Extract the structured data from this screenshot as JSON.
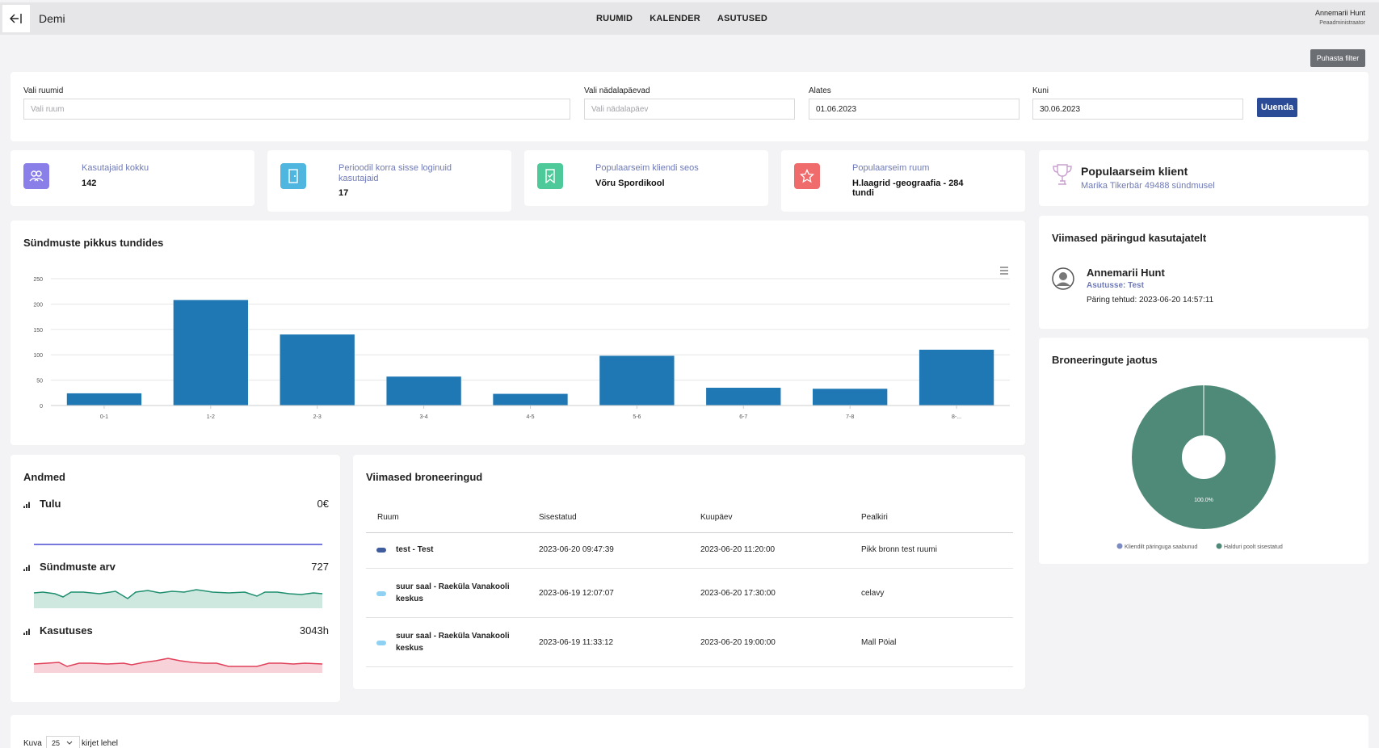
{
  "header": {
    "back_icon": "arrow-left-icon",
    "app_title": "Demi",
    "nav": [
      "RUUMID",
      "KALENDER",
      "ASUTUSED"
    ],
    "user_name": "Annemarii Hunt",
    "user_role": "Peaadministraator"
  },
  "clear_filter_label": "Puhasta filter",
  "filters": {
    "rooms_label": "Vali ruumid",
    "rooms_placeholder": "Vali ruum",
    "weekdays_label": "Vali nädalapäevad",
    "weekdays_placeholder": "Vali nädalapäev",
    "from_label": "Alates",
    "from_value": "01.06.2023",
    "to_label": "Kuni",
    "to_value": "30.06.2023",
    "renew_label": "Uuenda"
  },
  "stats": [
    {
      "label": "Kasutajaid kokku",
      "value": "142",
      "icon": "users-icon",
      "color": "#8a7ee8"
    },
    {
      "label": "Perioodil korra sisse loginuid kasutajaid",
      "value": "17",
      "icon": "door-icon",
      "color": "#4fb6e0"
    },
    {
      "label": "Populaarseim kliendi seos",
      "value": "Võru Spordikool",
      "icon": "bookmark-icon",
      "color": "#4ec99a"
    },
    {
      "label": "Populaarseim ruum",
      "value": "H.laagrid -geograafia - 284 tundi",
      "icon": "star-icon",
      "color": "#f06b6b"
    }
  ],
  "popular_client": {
    "title": "Populaarseim klient",
    "value": "Marika Tikerbär 49488 sündmusel",
    "icon": "trophy-icon"
  },
  "events_chart": {
    "title": "Sündmuste pikkus tundides",
    "menu_icon": "hamburger-menu-icon"
  },
  "chart_data": [
    {
      "type": "bar",
      "title": "Sündmuste pikkus tundides",
      "categories": [
        "0-1",
        "1-2",
        "2-3",
        "3-4",
        "4-5",
        "5-6",
        "6-7",
        "7-8",
        "8-..."
      ],
      "values": [
        24,
        208,
        140,
        57,
        23,
        98,
        35,
        33,
        110
      ],
      "yticks": [
        0,
        50,
        100,
        150,
        200,
        250
      ],
      "ylim": [
        0,
        250
      ],
      "grid": true,
      "color": "#1f77b4"
    },
    {
      "type": "pie",
      "title": "Broneeringute jaotus",
      "labels": [
        "Kliendilt päringuga saabunud",
        "Halduri poolt sisestatud"
      ],
      "values": [
        0,
        100
      ],
      "slice_label": "100.0%",
      "colors": [
        "#7b8bc4",
        "#4f8a78"
      ],
      "legend": "bottom"
    }
  ],
  "recent_requests": {
    "title": "Viimased päringud kasutajatelt",
    "name": "Annemarii Hunt",
    "org": "Asutusse: Test",
    "made": "Päring tehtud: 2023-06-20 14:57:11",
    "avatar_icon": "user-circle-icon"
  },
  "pie_card": {
    "title": "Broneeringute jaotus"
  },
  "andmed": {
    "title": "Andmed",
    "rows": [
      {
        "label": "Tulu",
        "value": "0€",
        "color": "#4a4ad6"
      },
      {
        "label": "Sündmuste arv",
        "value": "727",
        "color": "#1f8f6f"
      },
      {
        "label": "Kasutuses",
        "value": "3043h",
        "color": "#e0405a"
      }
    ]
  },
  "bookings": {
    "title": "Viimased broneeringud",
    "columns": [
      "Ruum",
      "Sisestatud",
      "Kuupäev",
      "Pealkiri"
    ],
    "rows": [
      {
        "room": "test - Test",
        "entered": "2023-06-20 09:47:39",
        "date": "2023-06-20 11:20:00",
        "title": "Pikk bronn test ruumi",
        "color": "#3f5c9c"
      },
      {
        "room": "suur saal - Raeküla Vanakooli keskus",
        "entered": "2023-06-19 12:07:07",
        "date": "2023-06-20 17:30:00",
        "title": "celavy",
        "color": "#8fd1f2"
      },
      {
        "room": "suur saal - Raeküla Vanakooli keskus",
        "entered": "2023-06-19 11:33:12",
        "date": "2023-06-20 19:00:00",
        "title": "Mall Pöial",
        "color": "#8fd1f2"
      }
    ]
  },
  "pager": {
    "show": "Kuva",
    "per_page": "25",
    "suffix": "kirjet lehel"
  }
}
